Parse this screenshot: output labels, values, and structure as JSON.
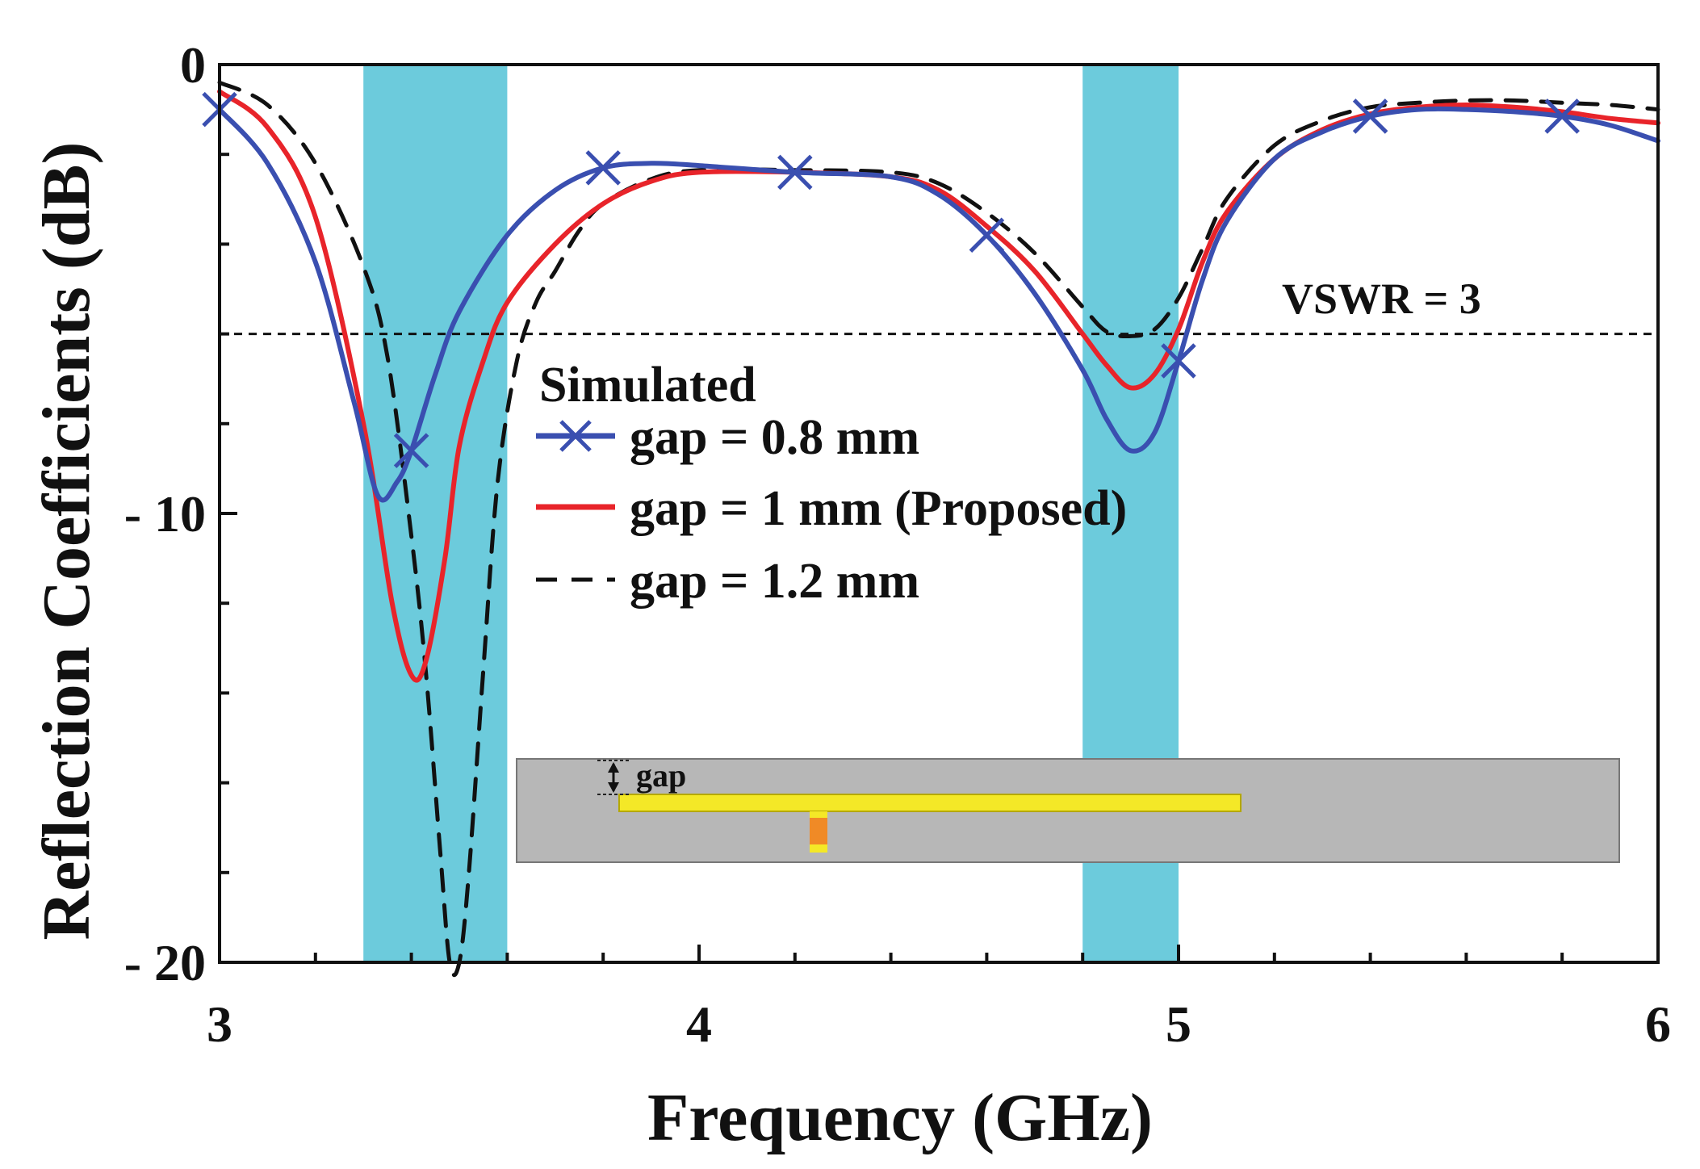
{
  "chart_data": {
    "type": "line",
    "xlabel": "Frequency (GHz)",
    "ylabel": "Reflection Coefficients (dB)",
    "xlim": [
      3,
      6
    ],
    "ylim": [
      -20,
      0
    ],
    "x_ticks": [
      3,
      4,
      5,
      6
    ],
    "x_tick_labels": [
      "3",
      "4",
      "5",
      "6"
    ],
    "y_ticks": [
      0,
      -10,
      -20
    ],
    "y_tick_labels": [
      "0",
      "- 10",
      "- 20"
    ],
    "grid": false,
    "shaded_bands": [
      {
        "from": 3.3,
        "to": 3.6,
        "color": "#6ccbdc"
      },
      {
        "from": 4.8,
        "to": 5.0,
        "color": "#6ccbdc"
      }
    ],
    "reference_line": {
      "y": -6,
      "label": "VSWR = 3",
      "style": "dashed"
    },
    "legend_title": "Simulated",
    "series": [
      {
        "name": "gap = 0.8 mm",
        "color": "#3a4fb0",
        "style": "solid-x",
        "x": [
          3.0,
          3.1,
          3.2,
          3.28,
          3.33,
          3.37,
          3.4,
          3.45,
          3.5,
          3.6,
          3.7,
          3.8,
          3.9,
          4.0,
          4.2,
          4.4,
          4.5,
          4.6,
          4.7,
          4.8,
          4.85,
          4.9,
          4.95,
          5.0,
          5.05,
          5.1,
          5.2,
          5.3,
          5.4,
          5.5,
          5.6,
          5.7,
          5.8,
          5.9,
          6.0
        ],
        "y": [
          -1.0,
          -2.2,
          -4.4,
          -7.5,
          -9.6,
          -9.3,
          -8.6,
          -6.9,
          -5.5,
          -3.8,
          -2.8,
          -2.3,
          -2.2,
          -2.25,
          -2.4,
          -2.5,
          -2.9,
          -3.8,
          -5.1,
          -6.8,
          -7.9,
          -8.6,
          -8.2,
          -6.6,
          -4.8,
          -3.5,
          -2.1,
          -1.5,
          -1.15,
          -1.0,
          -1.0,
          -1.05,
          -1.15,
          -1.35,
          -1.7
        ],
        "marker_x": [
          3.0,
          3.4,
          3.8,
          4.2,
          4.6,
          5.0,
          5.4,
          5.8
        ]
      },
      {
        "name": "gap = 1 mm (Proposed)",
        "color": "#e8242a",
        "style": "solid",
        "x": [
          3.0,
          3.1,
          3.2,
          3.3,
          3.36,
          3.4,
          3.43,
          3.47,
          3.5,
          3.55,
          3.6,
          3.7,
          3.8,
          3.9,
          4.0,
          4.2,
          4.4,
          4.5,
          4.6,
          4.7,
          4.8,
          4.85,
          4.9,
          4.95,
          5.0,
          5.05,
          5.1,
          5.2,
          5.3,
          5.4,
          5.5,
          5.6,
          5.7,
          5.8,
          5.9,
          6.0
        ],
        "y": [
          -0.6,
          -1.4,
          -3.4,
          -8.0,
          -12.0,
          -13.6,
          -13.3,
          -11.0,
          -8.5,
          -6.6,
          -5.3,
          -4.0,
          -3.1,
          -2.6,
          -2.4,
          -2.4,
          -2.5,
          -2.8,
          -3.6,
          -4.6,
          -6.0,
          -6.7,
          -7.2,
          -6.9,
          -5.9,
          -4.4,
          -3.3,
          -2.1,
          -1.45,
          -1.1,
          -0.95,
          -0.9,
          -0.95,
          -1.05,
          -1.2,
          -1.3
        ]
      },
      {
        "name": "gap = 1.2 mm",
        "color": "#111111",
        "style": "dashed",
        "x": [
          3.0,
          3.1,
          3.2,
          3.3,
          3.35,
          3.4,
          3.43,
          3.46,
          3.48,
          3.5,
          3.52,
          3.55,
          3.58,
          3.62,
          3.66,
          3.7,
          3.75,
          3.8,
          3.9,
          4.0,
          4.2,
          4.4,
          4.5,
          4.6,
          4.7,
          4.8,
          4.85,
          4.9,
          4.95,
          5.0,
          5.05,
          5.1,
          5.2,
          5.3,
          5.4,
          5.5,
          5.6,
          5.7,
          5.8,
          5.9,
          6.0
        ],
        "y": [
          -0.4,
          -0.9,
          -2.2,
          -4.5,
          -6.5,
          -10.5,
          -13.5,
          -17.5,
          -20.0,
          -20.0,
          -18.0,
          -13.5,
          -9.3,
          -6.6,
          -5.3,
          -4.6,
          -3.7,
          -3.1,
          -2.55,
          -2.35,
          -2.35,
          -2.4,
          -2.65,
          -3.3,
          -4.2,
          -5.4,
          -5.95,
          -6.05,
          -5.9,
          -5.2,
          -4.1,
          -3.0,
          -1.8,
          -1.25,
          -0.95,
          -0.85,
          -0.8,
          -0.8,
          -0.85,
          -0.9,
          -1.0
        ]
      }
    ],
    "inset": {
      "label": "gap",
      "substrate_color": "#b7b7b7",
      "strip_color": "#f4e827",
      "feed_color": "#f08a26"
    }
  }
}
